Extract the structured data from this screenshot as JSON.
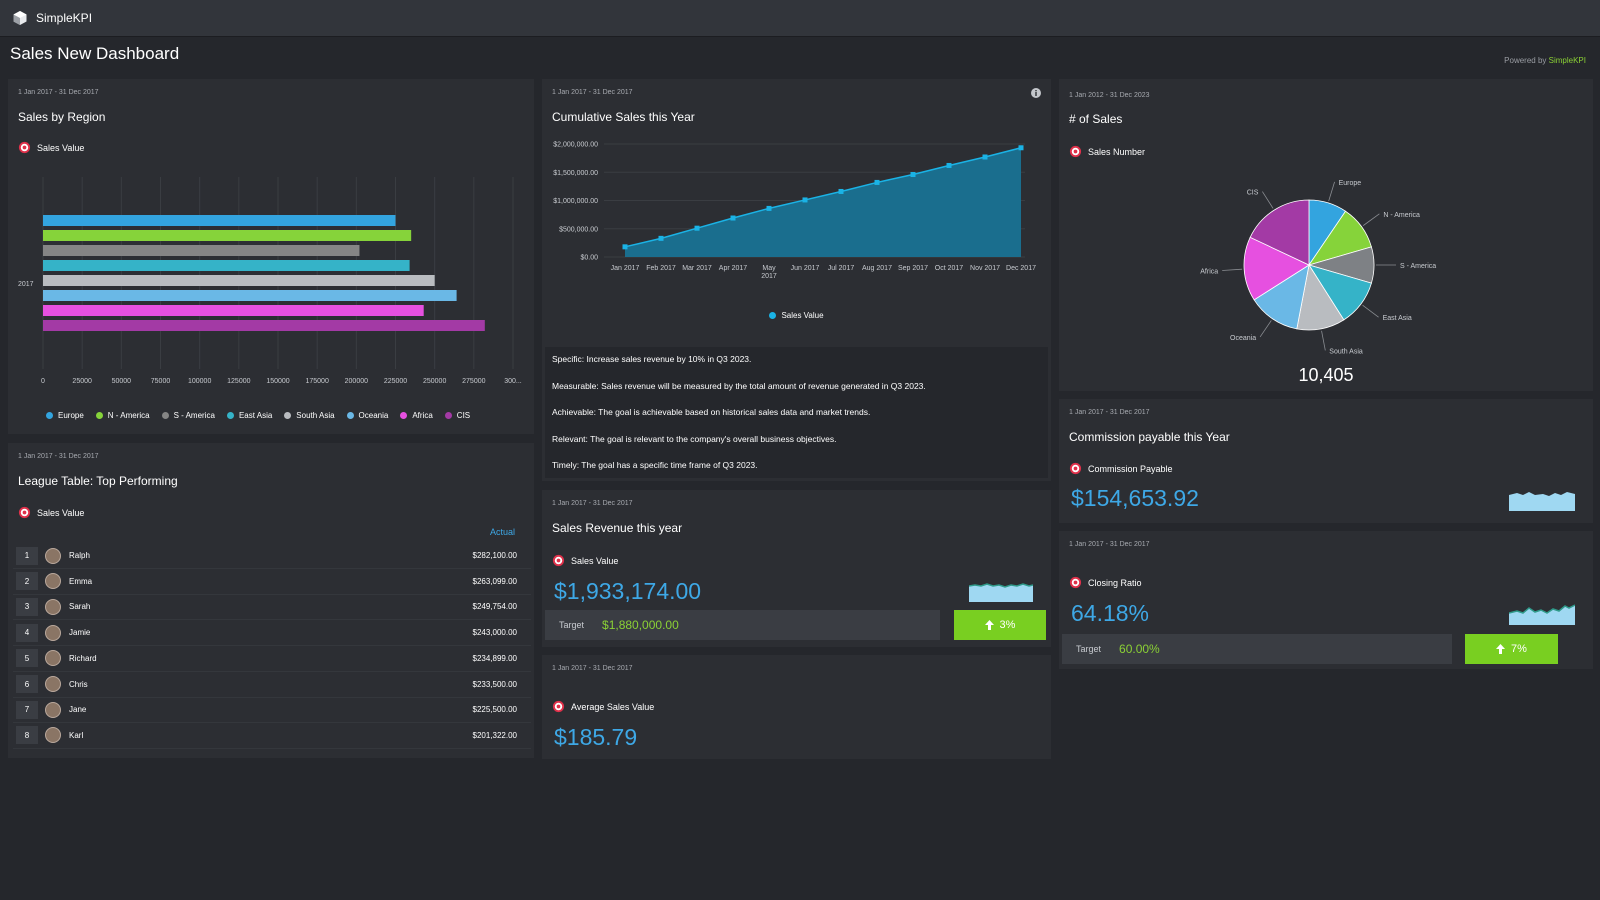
{
  "app": {
    "brand": "SimpleKPI",
    "page_title": "Sales New Dashboard",
    "powered_prefix": "Powered by ",
    "powered_brand": "SimpleKPI"
  },
  "colors": {
    "accent_blue": "#3ea8e6",
    "accent_green": "#79cf21",
    "card_bg": "#2c2e33"
  },
  "region_card": {
    "date": "1 Jan 2017 - 31 Dec 2017",
    "title": "Sales by Region",
    "metric": "Sales Value",
    "chart_data": {
      "type": "bar",
      "orientation": "horizontal",
      "categories": [
        "2017"
      ],
      "series": [
        {
          "name": "Europe",
          "values": [
            225000
          ],
          "color": "#33a4df"
        },
        {
          "name": "N - America",
          "values": [
            235000
          ],
          "color": "#86d33a"
        },
        {
          "name": "S - America",
          "values": [
            202000
          ],
          "color": "#858585"
        },
        {
          "name": "East Asia",
          "values": [
            234000
          ],
          "color": "#35b3c8"
        },
        {
          "name": "South Asia",
          "values": [
            250000
          ],
          "color": "#b9bcc0"
        },
        {
          "name": "Oceania",
          "values": [
            264000
          ],
          "color": "#6ab8e6"
        },
        {
          "name": "Africa",
          "values": [
            243000
          ],
          "color": "#e650e0"
        },
        {
          "name": "CIS",
          "values": [
            282000
          ],
          "color": "#a33aa5"
        }
      ],
      "x_ticks": [
        "0",
        "25000",
        "50000",
        "75000",
        "100000",
        "125000",
        "150000",
        "175000",
        "200000",
        "225000",
        "250000",
        "275000",
        "300..."
      ],
      "xlim": [
        0,
        300000
      ],
      "grid": true,
      "legend": "bottom"
    }
  },
  "league_card": {
    "date": "1 Jan 2017 - 31 Dec 2017",
    "title": "League Table: Top Performing",
    "metric": "Sales Value",
    "column": "Actual",
    "rows": [
      {
        "rank": "1",
        "name": "Ralph",
        "value": "$282,100.00"
      },
      {
        "rank": "2",
        "name": "Emma",
        "value": "$263,099.00"
      },
      {
        "rank": "3",
        "name": "Sarah",
        "value": "$249,754.00"
      },
      {
        "rank": "4",
        "name": "Jamie",
        "value": "$243,000.00"
      },
      {
        "rank": "5",
        "name": "Richard",
        "value": "$234,899.00"
      },
      {
        "rank": "6",
        "name": "Chris",
        "value": "$233,500.00"
      },
      {
        "rank": "7",
        "name": "Jane",
        "value": "$225,500.00"
      },
      {
        "rank": "8",
        "name": "Karl",
        "value": "$201,322.00"
      }
    ]
  },
  "cumulative_card": {
    "date": "1 Jan 2017 - 31 Dec 2017",
    "title": "Cumulative Sales this Year",
    "legend": "Sales Value",
    "chart_data": {
      "type": "area",
      "x": [
        "Jan 2017",
        "Feb 2017",
        "Mar 2017",
        "Apr 2017",
        "May 2017",
        "Jun 2017",
        "Jul 2017",
        "Aug 2017",
        "Sep 2017",
        "Oct 2017",
        "Nov 2017",
        "Dec 2017"
      ],
      "x_tick_labels": [
        [
          "Jan 2017"
        ],
        [
          "Feb 2017"
        ],
        [
          "Mar 2017"
        ],
        [
          "Apr 2017"
        ],
        [
          "May",
          "2017"
        ],
        [
          "Jun 2017"
        ],
        [
          "Jul 2017"
        ],
        [
          "Aug 2017"
        ],
        [
          "Sep 2017"
        ],
        [
          "Oct 2017"
        ],
        [
          "Nov 2017"
        ],
        [
          "Dec 2017"
        ]
      ],
      "series": [
        {
          "name": "Sales Value",
          "values": [
            180000,
            330000,
            510000,
            690000,
            860000,
            1010000,
            1160000,
            1320000,
            1460000,
            1620000,
            1770000,
            1933174
          ]
        }
      ],
      "y_ticks": [
        "$2,000,000.00",
        "$1,500,000.00",
        "$1,000,000.00",
        "$500,000.00",
        "$0.00"
      ],
      "ylim": [
        0,
        2000000
      ],
      "legend": "bottom"
    }
  },
  "smart": [
    "Specific: Increase sales revenue by 10% in Q3 2023.",
    "Measurable: Sales revenue will be measured by the total amount of revenue generated in Q3 2023.",
    "Achievable: The goal is achievable based on historical sales data and market trends.",
    "Relevant: The goal is relevant to the company's overall business objectives.",
    "Timely: The goal has a specific time frame of Q3 2023."
  ],
  "revenue_card": {
    "date": "1 Jan 2017 - 31 Dec 2017",
    "title": "Sales Revenue this year",
    "metric": "Sales Value",
    "value": "$1,933,174.00",
    "target_label": "Target",
    "target_value": "$1,880,000.00",
    "change": "3%"
  },
  "average_card": {
    "date": "1 Jan 2017 - 31 Dec 2017",
    "metric": "Average Sales Value",
    "value": "$185.79"
  },
  "pie_card": {
    "date": "1 Jan 2012 - 31 Dec 2023",
    "title": "# of Sales",
    "metric": "Sales Number",
    "total": "10,405",
    "chart_data": {
      "type": "pie",
      "slices": [
        {
          "name": "Europe",
          "value": 9.5,
          "color": "#33a4df"
        },
        {
          "name": "N - America",
          "value": 11,
          "color": "#86d33a"
        },
        {
          "name": "S - America",
          "value": 9,
          "color": "#7e8185"
        },
        {
          "name": "East Asia",
          "value": 11.5,
          "color": "#35b3c8"
        },
        {
          "name": "South Asia",
          "value": 12,
          "color": "#b9bcc0"
        },
        {
          "name": "Oceania",
          "value": 13,
          "color": "#6ab8e6"
        },
        {
          "name": "Africa",
          "value": 16,
          "color": "#e650e0"
        },
        {
          "name": "CIS",
          "value": 18,
          "color": "#a33aa5"
        }
      ]
    }
  },
  "commission_card": {
    "date": "1 Jan 2017 - 31 Dec 2017",
    "title": "Commission payable this Year",
    "metric": "Commission Payable",
    "value": "$154,653.92"
  },
  "closing_card": {
    "date": "1 Jan 2017 - 31 Dec 2017",
    "metric": "Closing Ratio",
    "value": "64.18%",
    "target_label": "Target",
    "target_value": "60.00%",
    "change": "7%"
  }
}
